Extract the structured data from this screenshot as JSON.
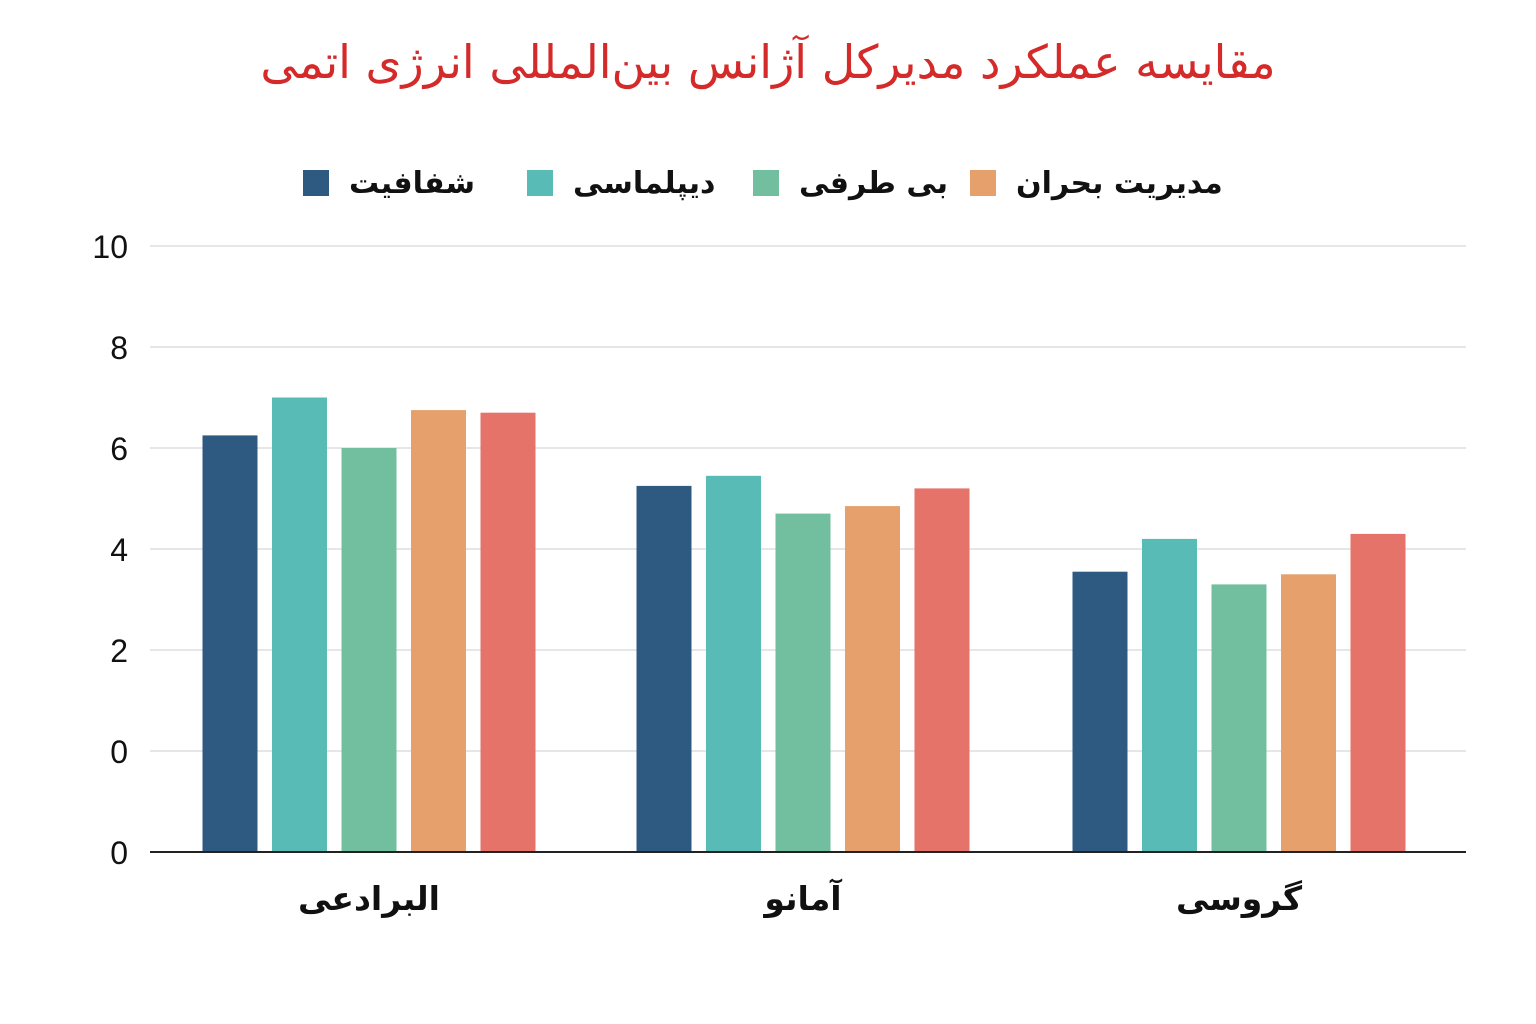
{
  "chart_data": {
    "type": "bar",
    "title": "مقایسه عملکرد مدیرکل آژانس بین‌المللی انرژی اتمی",
    "categories": [
      "البرادعی",
      "آمانو",
      "گروسی"
    ],
    "series": [
      {
        "name": "شفافیت",
        "color": "#2e5980",
        "values": [
          8.25,
          7.25,
          5.55
        ]
      },
      {
        "name": "دیپلماسی",
        "color": "#59bbb6",
        "values": [
          9.0,
          7.45,
          6.2
        ]
      },
      {
        "name": "بی طرفی",
        "color": "#72bfa0",
        "values": [
          8.0,
          6.7,
          5.3
        ]
      },
      {
        "name": "مدیریت بحران",
        "color": "#e5a06c",
        "values": [
          8.75,
          6.85,
          5.5
        ]
      },
      {
        "name": "",
        "color": "#e5736a",
        "values": [
          8.7,
          7.2,
          6.3
        ]
      }
    ],
    "y_tick_labels": [
      "0",
      "0",
      "2",
      "4",
      "6",
      "8",
      "10"
    ],
    "ylim": [
      0,
      12
    ],
    "grid": true,
    "legend_position": "top"
  }
}
